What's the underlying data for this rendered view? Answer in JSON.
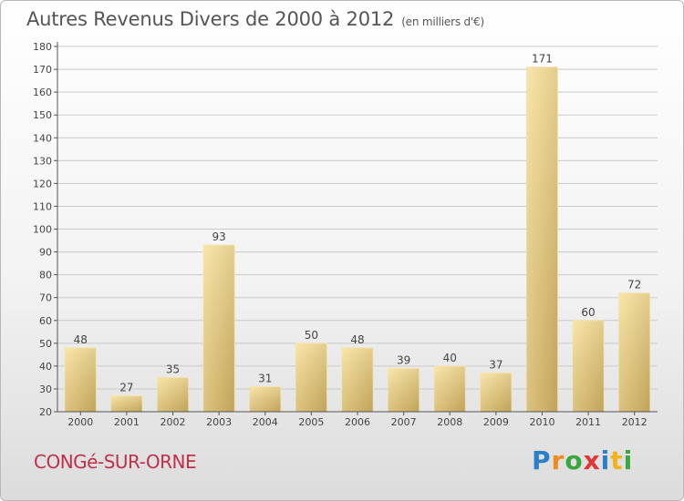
{
  "title": "Autres Revenus Divers de 2000 à 2012",
  "unit_label": "(en milliers d'€)",
  "town": "CONGé-SUR-ORNE",
  "logo": [
    "P",
    "r",
    "o",
    "x",
    "i",
    "t",
    "i"
  ],
  "colors": {
    "bar_light": "#f5dc96",
    "bar_dark": "#c8ad64",
    "axis": "#555555",
    "grid": "#cccccc",
    "town": "#c0304a"
  },
  "chart_data": {
    "type": "bar",
    "title": "Autres Revenus Divers de 2000 à 2012",
    "categories": [
      "2000",
      "2001",
      "2002",
      "2003",
      "2004",
      "2005",
      "2006",
      "2007",
      "2008",
      "2009",
      "2010",
      "2011",
      "2012"
    ],
    "values": [
      48,
      27,
      35,
      93,
      31,
      50,
      48,
      39,
      40,
      37,
      171,
      60,
      72
    ],
    "ylim": [
      20,
      180
    ],
    "yticks": [
      20,
      30,
      40,
      50,
      60,
      70,
      80,
      90,
      100,
      110,
      120,
      130,
      140,
      150,
      160,
      170,
      180
    ],
    "grid": "horizontal"
  }
}
